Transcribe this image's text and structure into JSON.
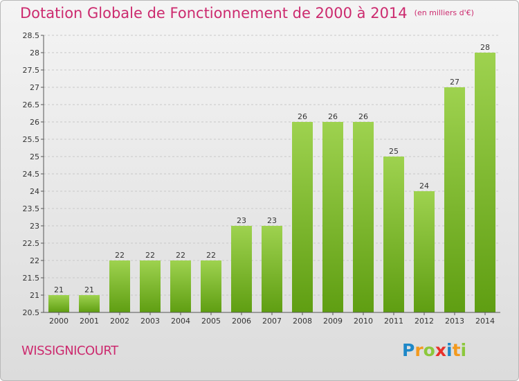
{
  "title": "Dotation Globale de Fonctionnement de 2000 à 2014",
  "subtitle": "(en milliers d'€)",
  "commune": "WISSIGNICOURT",
  "logo": {
    "p": "P",
    "r": "r",
    "o": "o",
    "x": "x",
    "i1": "i",
    "t": "t",
    "i2": "i"
  },
  "colors": {
    "bar_top": "#9ed24f",
    "bar_bottom": "#5f9e12",
    "accent": "#cc2a6e",
    "grid": "#c8c8c8"
  },
  "chart_data": {
    "type": "bar",
    "title": "Dotation Globale de Fonctionnement de 2000 à 2014",
    "subtitle": "(en milliers d'€)",
    "categories": [
      "2000",
      "2001",
      "2002",
      "2003",
      "2004",
      "2005",
      "2006",
      "2007",
      "2008",
      "2009",
      "2010",
      "2011",
      "2012",
      "2013",
      "2014"
    ],
    "values": [
      21,
      21,
      22,
      22,
      22,
      22,
      23,
      23,
      26,
      26,
      26,
      25,
      24,
      27,
      28
    ],
    "data_labels": [
      "21",
      "21",
      "22",
      "22",
      "22",
      "22",
      "23",
      "23",
      "26",
      "26",
      "26",
      "25",
      "24",
      "27",
      "28"
    ],
    "ylim": [
      20.5,
      28.5
    ],
    "yticks": [
      20.5,
      21,
      21.5,
      22,
      22.5,
      23,
      23.5,
      24,
      24.5,
      25,
      25.5,
      26,
      26.5,
      27,
      27.5,
      28,
      28.5
    ],
    "ytick_labels": [
      "20.5",
      "21",
      "21.5",
      "22",
      "22.5",
      "23",
      "23.5",
      "24",
      "24.5",
      "25",
      "25.5",
      "26",
      "26.5",
      "27",
      "27.5",
      "28",
      "28.5"
    ],
    "grid": true,
    "xlabel": "",
    "ylabel": ""
  }
}
